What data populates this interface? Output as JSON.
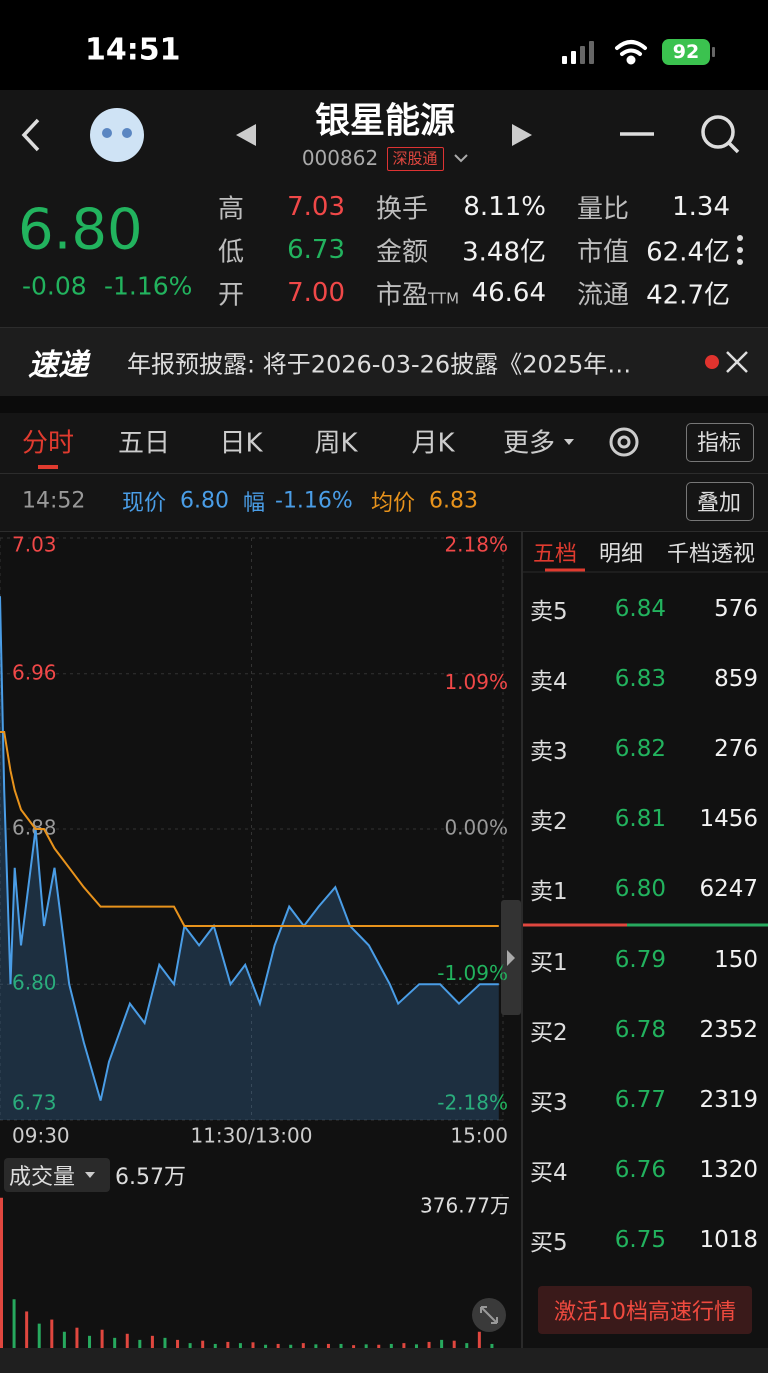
{
  "status_bar": {
    "time": "14:51",
    "battery": "92"
  },
  "header": {
    "title": "银星能源",
    "code": "000862",
    "tag": "深股通"
  },
  "quote": {
    "price": "6.80",
    "change": "-0.08",
    "change_pct": "-1.16%"
  },
  "stats": [
    [
      {
        "label": "高",
        "value": "7.03"
      },
      {
        "label": "换手",
        "value": "8.11%"
      },
      {
        "label": "量比",
        "value": "1.34"
      }
    ],
    [
      {
        "label": "低",
        "value": "6.73"
      },
      {
        "label": "金额",
        "value": "3.48亿"
      },
      {
        "label": "市值",
        "value": "62.4亿"
      }
    ],
    [
      {
        "label": "开",
        "value": "7.00"
      },
      {
        "label": "市盈",
        "suffix": "TTM",
        "value": "46.64"
      },
      {
        "label": "流通",
        "value": "42.7亿"
      }
    ]
  ],
  "news": {
    "badge": "速递",
    "text": "年报预披露: 将于2026-03-26披露《2025年…"
  },
  "tabs": [
    "分时",
    "五日",
    "日K",
    "周K",
    "月K",
    "更多"
  ],
  "indicator_button": "指标",
  "info_bar": {
    "time": "14:52",
    "price_label": "现价",
    "price": "6.80",
    "pct_label": "幅",
    "pct": "-1.16%",
    "avg_label": "均价",
    "avg": "6.83",
    "overlay_button": "叠加"
  },
  "chart_data": [
    {
      "type": "line",
      "x": [
        0,
        2,
        5,
        7,
        10,
        17,
        21,
        26,
        33,
        40,
        48,
        52,
        62,
        69,
        76,
        83,
        88,
        95,
        102,
        110,
        117,
        124,
        131,
        138,
        145,
        152,
        160,
        167,
        176,
        186,
        190,
        200,
        210,
        219,
        229,
        238
      ],
      "series": [
        {
          "color": "#4a9de6",
          "fill": true,
          "values": [
            7.0,
            6.9,
            6.8,
            6.86,
            6.82,
            6.88,
            6.83,
            6.86,
            6.8,
            6.77,
            6.74,
            6.76,
            6.79,
            6.78,
            6.81,
            6.8,
            6.83,
            6.82,
            6.83,
            6.8,
            6.81,
            6.79,
            6.82,
            6.84,
            6.83,
            6.84,
            6.85,
            6.83,
            6.82,
            6.8,
            6.79,
            6.8,
            6.8,
            6.79,
            6.8,
            6.8
          ]
        },
        {
          "color": "#e8931c",
          "fill": false,
          "values": [
            6.93,
            6.93,
            6.91,
            6.9,
            6.89,
            6.88,
            6.88,
            6.87,
            6.86,
            6.85,
            6.84,
            6.84,
            6.84,
            6.84,
            6.84,
            6.84,
            6.83,
            6.83,
            6.83,
            6.83,
            6.83,
            6.83,
            6.83,
            6.83,
            6.83,
            6.83,
            6.83,
            6.83,
            6.83,
            6.83,
            6.83,
            6.83,
            6.83,
            6.83,
            6.83,
            6.83
          ]
        }
      ],
      "xlim": [
        0,
        240
      ],
      "xticks": [
        {
          "value": 0,
          "label": "09:30"
        },
        {
          "value": 120,
          "label": "11:30/13:00"
        },
        {
          "value": 240,
          "label": "15:00"
        }
      ],
      "ylim": [
        6.73,
        7.03
      ],
      "yticks": [
        7.03,
        6.96,
        6.88,
        {
          "value": 6.8,
          "label": "6.80"
        },
        6.73
      ],
      "y2lim": [
        -2.18,
        2.18
      ],
      "y2ticks": [
        {
          "value": 2.18,
          "label": "2.18%"
        },
        {
          "value": 1.09,
          "label": "1.09%"
        },
        {
          "value": 0,
          "label": "0.00%"
        },
        {
          "value": -1.09,
          "label": "-1.09%"
        },
        {
          "value": -2.18,
          "label": "-2.18%"
        }
      ],
      "grid": true
    },
    {
      "type": "bar",
      "label": "成交量",
      "current_value": "6.57万",
      "xlim": [
        0,
        240
      ],
      "ylim": [
        0,
        376.77
      ],
      "yticks": [
        {
          "value": 376.77,
          "label": "376.77万"
        }
      ],
      "series": [
        {
          "color": "#e0473f",
          "x": [
            0,
            12,
            24,
            36,
            48,
            60,
            72,
            84,
            96,
            108,
            120,
            132,
            144,
            156,
            168,
            180,
            192,
            204,
            216,
            228
          ],
          "values": [
            370,
            90,
            70,
            50,
            45,
            35,
            30,
            20,
            18,
            15,
            14,
            10,
            12,
            10,
            7,
            8,
            12,
            15,
            18,
            40
          ]
        },
        {
          "color": "#27a95e",
          "x": [
            6,
            18,
            30,
            42,
            54,
            66,
            78,
            90,
            102,
            114,
            126,
            138,
            150,
            162,
            174,
            186,
            198,
            210,
            222,
            234
          ],
          "values": [
            120,
            60,
            40,
            30,
            25,
            20,
            25,
            12,
            10,
            12,
            8,
            8,
            9,
            10,
            9,
            10,
            9,
            20,
            12,
            10
          ]
        }
      ]
    }
  ],
  "order_book": {
    "tabs": [
      "五档",
      "明细",
      "千档透视"
    ],
    "asks": [
      [
        "卖5",
        "6.84",
        "576"
      ],
      [
        "卖4",
        "6.83",
        "859"
      ],
      [
        "卖3",
        "6.82",
        "276"
      ],
      [
        "卖2",
        "6.81",
        "1456"
      ],
      [
        "卖1",
        "6.80",
        "6247"
      ]
    ],
    "bids": [
      [
        "买1",
        "6.79",
        "150"
      ],
      [
        "买2",
        "6.78",
        "2352"
      ],
      [
        "买3",
        "6.77",
        "2319"
      ],
      [
        "买4",
        "6.76",
        "1320"
      ],
      [
        "买5",
        "6.75",
        "1018"
      ]
    ],
    "button": "激活10档高速行情"
  }
}
